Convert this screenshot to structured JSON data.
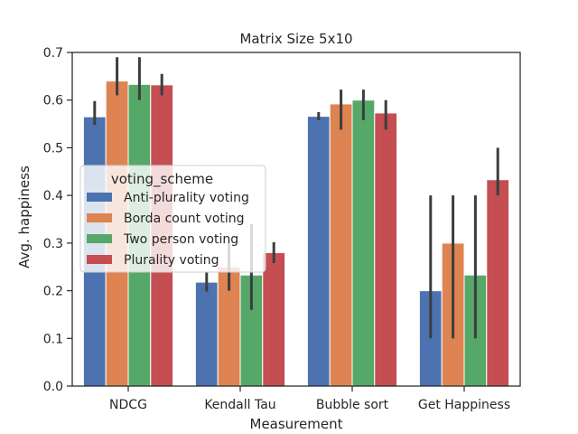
{
  "chart_data": {
    "type": "bar",
    "title": "Matrix Size 5x10",
    "xlabel": "Measurement",
    "ylabel": "Avg. happiness",
    "categories": [
      "NDCG",
      "Kendall Tau",
      "Bubble sort",
      "Get Happiness"
    ],
    "ylim": [
      0,
      0.7
    ],
    "yticks": [
      "0.0",
      "0.1",
      "0.2",
      "0.3",
      "0.4",
      "0.5",
      "0.6",
      "0.7"
    ],
    "legend": {
      "title": "voting_scheme",
      "placement": "center-left"
    },
    "series": [
      {
        "name": "Anti-plurality voting",
        "color": "#4c72b0",
        "values": [
          0.565,
          0.218,
          0.566,
          0.2
        ],
        "ci": [
          [
            0.548,
            0.598
          ],
          [
            0.198,
            0.238
          ],
          [
            0.558,
            0.575
          ],
          [
            0.1,
            0.4
          ]
        ]
      },
      {
        "name": "Borda count voting",
        "color": "#dd8452",
        "values": [
          0.64,
          0.25,
          0.592,
          0.3
        ],
        "ci": [
          [
            0.61,
            0.69
          ],
          [
            0.2,
            0.3
          ],
          [
            0.538,
            0.622
          ],
          [
            0.1,
            0.4
          ]
        ]
      },
      {
        "name": "Two person voting",
        "color": "#55a868",
        "values": [
          0.633,
          0.233,
          0.6,
          0.233
        ],
        "ci": [
          [
            0.6,
            0.69
          ],
          [
            0.16,
            0.34
          ],
          [
            0.558,
            0.622
          ],
          [
            0.1,
            0.4
          ]
        ]
      },
      {
        "name": "Plurality voting",
        "color": "#c44e52",
        "values": [
          0.632,
          0.28,
          0.573,
          0.433
        ],
        "ci": [
          [
            0.61,
            0.655
          ],
          [
            0.258,
            0.302
          ],
          [
            0.538,
            0.6
          ],
          [
            0.4,
            0.5
          ]
        ]
      }
    ]
  }
}
